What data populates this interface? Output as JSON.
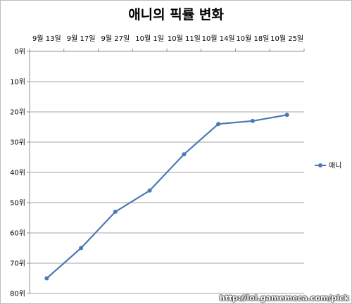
{
  "chart_data": {
    "type": "line",
    "title": "애니의 픽률 변화",
    "categories": [
      "9월 13일",
      "9월 17일",
      "9월 27일",
      "10월 1일",
      "10월 11일",
      "10월 14일",
      "10월 18일",
      "10월 25일"
    ],
    "series": [
      {
        "name": "애니",
        "values": [
          75,
          65,
          53,
          46,
          34,
          24,
          23,
          21
        ],
        "color": "#4a7ab5"
      }
    ],
    "y_ticks": [
      "0위",
      "10위",
      "20위",
      "30위",
      "40위",
      "50위",
      "60위",
      "70위",
      "80위"
    ],
    "ylim": [
      0,
      80
    ],
    "y_inverted": true,
    "x_axis_position": "top",
    "grid": true,
    "legend_position": "right"
  },
  "watermark": "http://lol.gamemeca.com/pick"
}
